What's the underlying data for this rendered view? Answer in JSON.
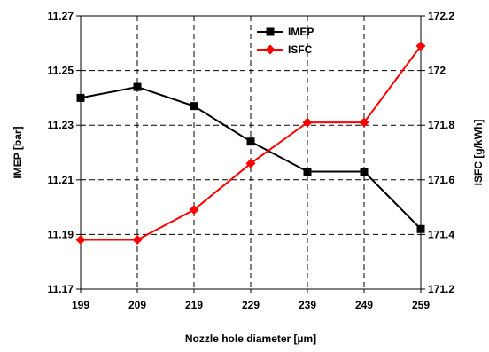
{
  "chart_data": {
    "type": "line",
    "xlabel": "Nozzle hole diameter [µm]",
    "ylabel": "IMEP [bar]",
    "y2label": "ISFC [g/kWh]",
    "x": [
      199,
      209,
      219,
      229,
      239,
      249,
      259
    ],
    "xlim": [
      199,
      259
    ],
    "ylim": [
      11.17,
      11.27
    ],
    "y2lim": [
      171.2,
      172.2
    ],
    "xticks": [
      "199",
      "209",
      "219",
      "229",
      "239",
      "249",
      "259"
    ],
    "yticks": [
      "11.17",
      "11.19",
      "11.21",
      "11.23",
      "11.25",
      "11.27"
    ],
    "y2ticks": [
      "171.2",
      "171.4",
      "171.6",
      "171.8",
      "172",
      "172.2"
    ],
    "grid": true,
    "legend_position": "top-center",
    "series": [
      {
        "name": "IMEP",
        "axis": "left",
        "color": "#000000",
        "marker": "square",
        "values": [
          11.24,
          11.244,
          11.237,
          11.224,
          11.213,
          11.213,
          11.192
        ]
      },
      {
        "name": "ISFC",
        "axis": "right",
        "color": "#ff0000",
        "marker": "diamond",
        "values": [
          171.38,
          171.38,
          171.49,
          171.66,
          171.81,
          171.81,
          172.09
        ]
      }
    ]
  }
}
